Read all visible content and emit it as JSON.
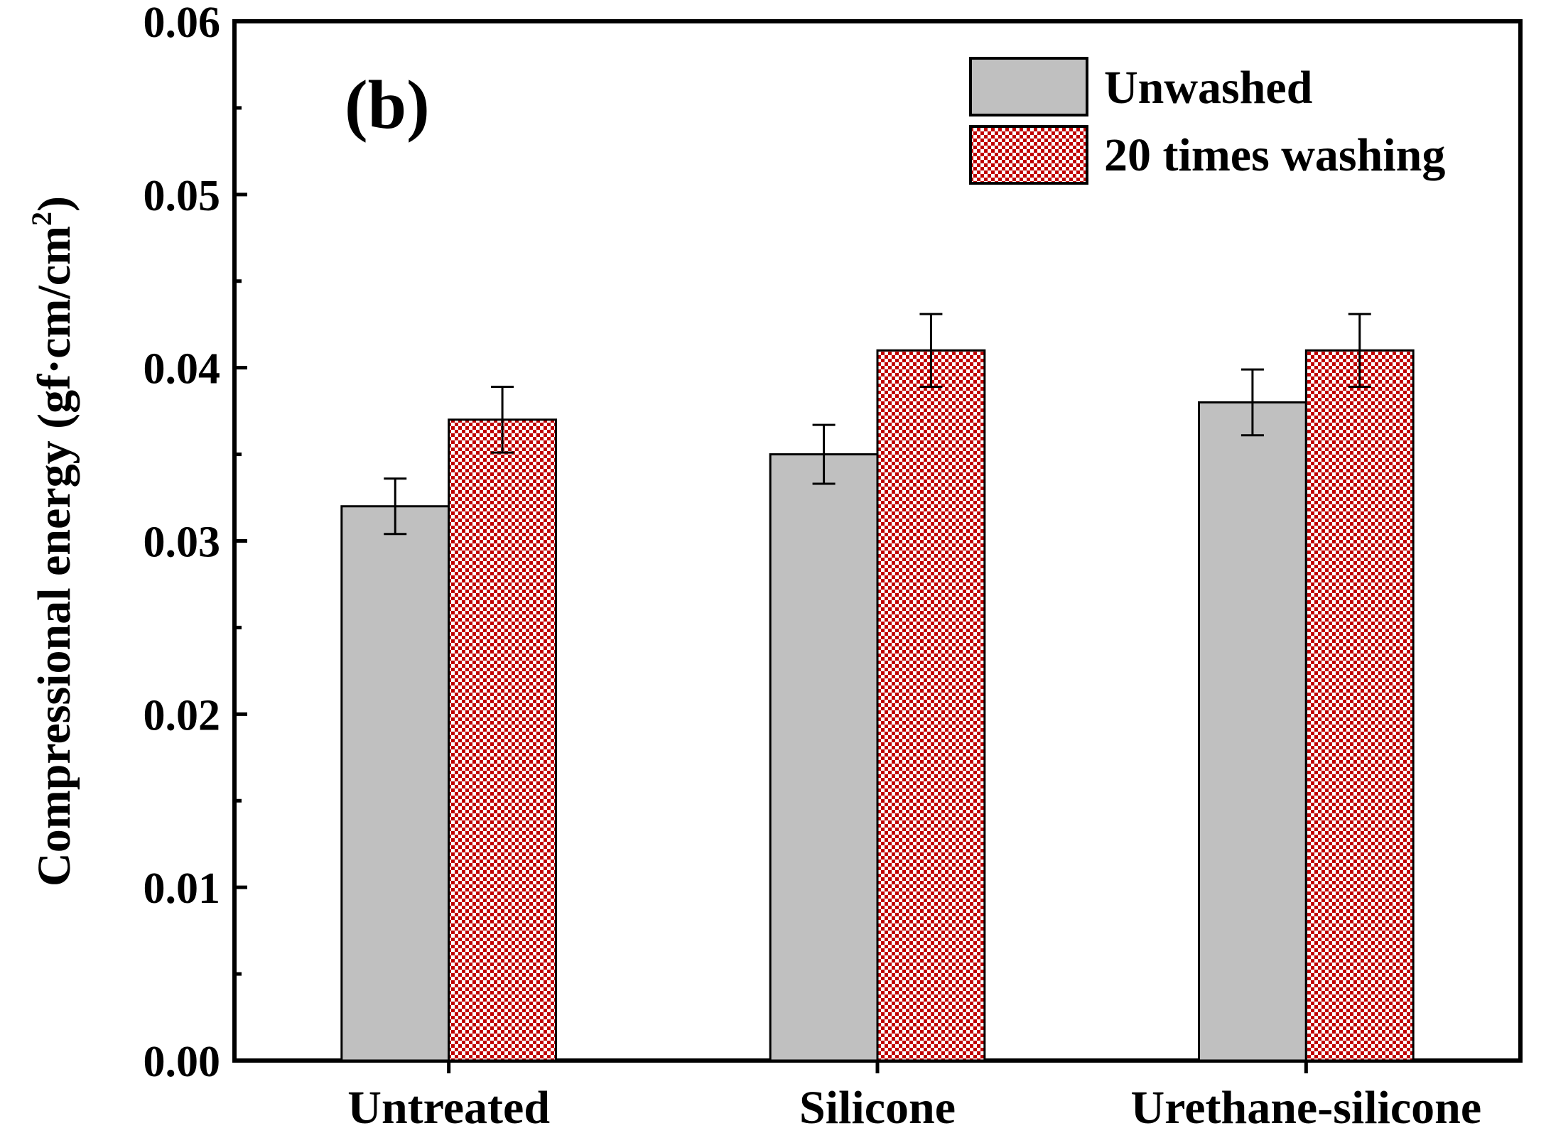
{
  "chart_data": {
    "type": "bar",
    "panel_label": "(b)",
    "title": "",
    "xlabel": "",
    "ylabel_main": "Compressional energy (gf·cm/cm",
    "ylabel_sup": "2",
    "ylabel_close": ")",
    "ylim": [
      0,
      0.06
    ],
    "yticks": [
      "0.00",
      "0.01",
      "0.02",
      "0.03",
      "0.04",
      "0.05",
      "0.06"
    ],
    "ytick_values": [
      0,
      0.01,
      0.02,
      0.03,
      0.04,
      0.05,
      0.06
    ],
    "categories": [
      "Untreated",
      "Silicone",
      "Urethane-silicone"
    ],
    "series": [
      {
        "name": "Unwashed",
        "values": [
          0.032,
          0.035,
          0.038
        ],
        "errors": [
          0.0016,
          0.0017,
          0.0019
        ],
        "color": "#c0c0c0"
      },
      {
        "name": "20 times washing",
        "values": [
          0.037,
          0.041,
          0.041
        ],
        "errors": [
          0.0019,
          0.0021,
          0.0021
        ],
        "color": "#c00000"
      }
    ],
    "legend_position": "top-right",
    "grid": false
  }
}
